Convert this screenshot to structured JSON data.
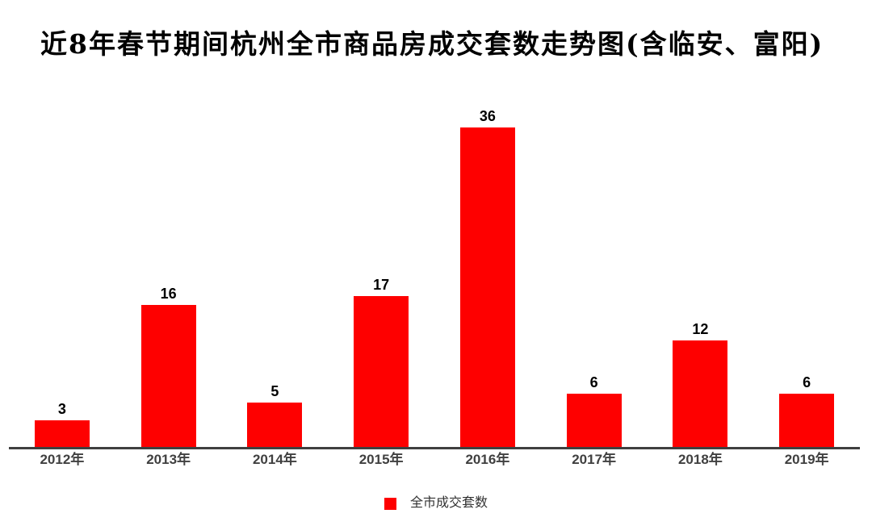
{
  "title": "近8年春节期间杭州全市商品房成交套数走势图(含临安、富阳)",
  "legend": {
    "label": "全市成交套数",
    "swatch_color": "#fe0000"
  },
  "chart_data": {
    "type": "bar",
    "title": "近8年春节期间杭州全市商品房成交套数走势图(含临安、富阳)",
    "categories": [
      "2012年",
      "2013年",
      "2014年",
      "2015年",
      "2016年",
      "2017年",
      "2018年",
      "2019年"
    ],
    "series": [
      {
        "name": "全市成交套数",
        "values": [
          3,
          16,
          5,
          17,
          36,
          6,
          12,
          6
        ]
      }
    ],
    "bar_color": "#fe0000",
    "axis_line_color": "#3f3f3f",
    "xlabel": "",
    "ylabel": "",
    "ylim": [
      0,
      40
    ],
    "grid": false,
    "value_labels_shown": true,
    "legend_position": "bottom"
  }
}
